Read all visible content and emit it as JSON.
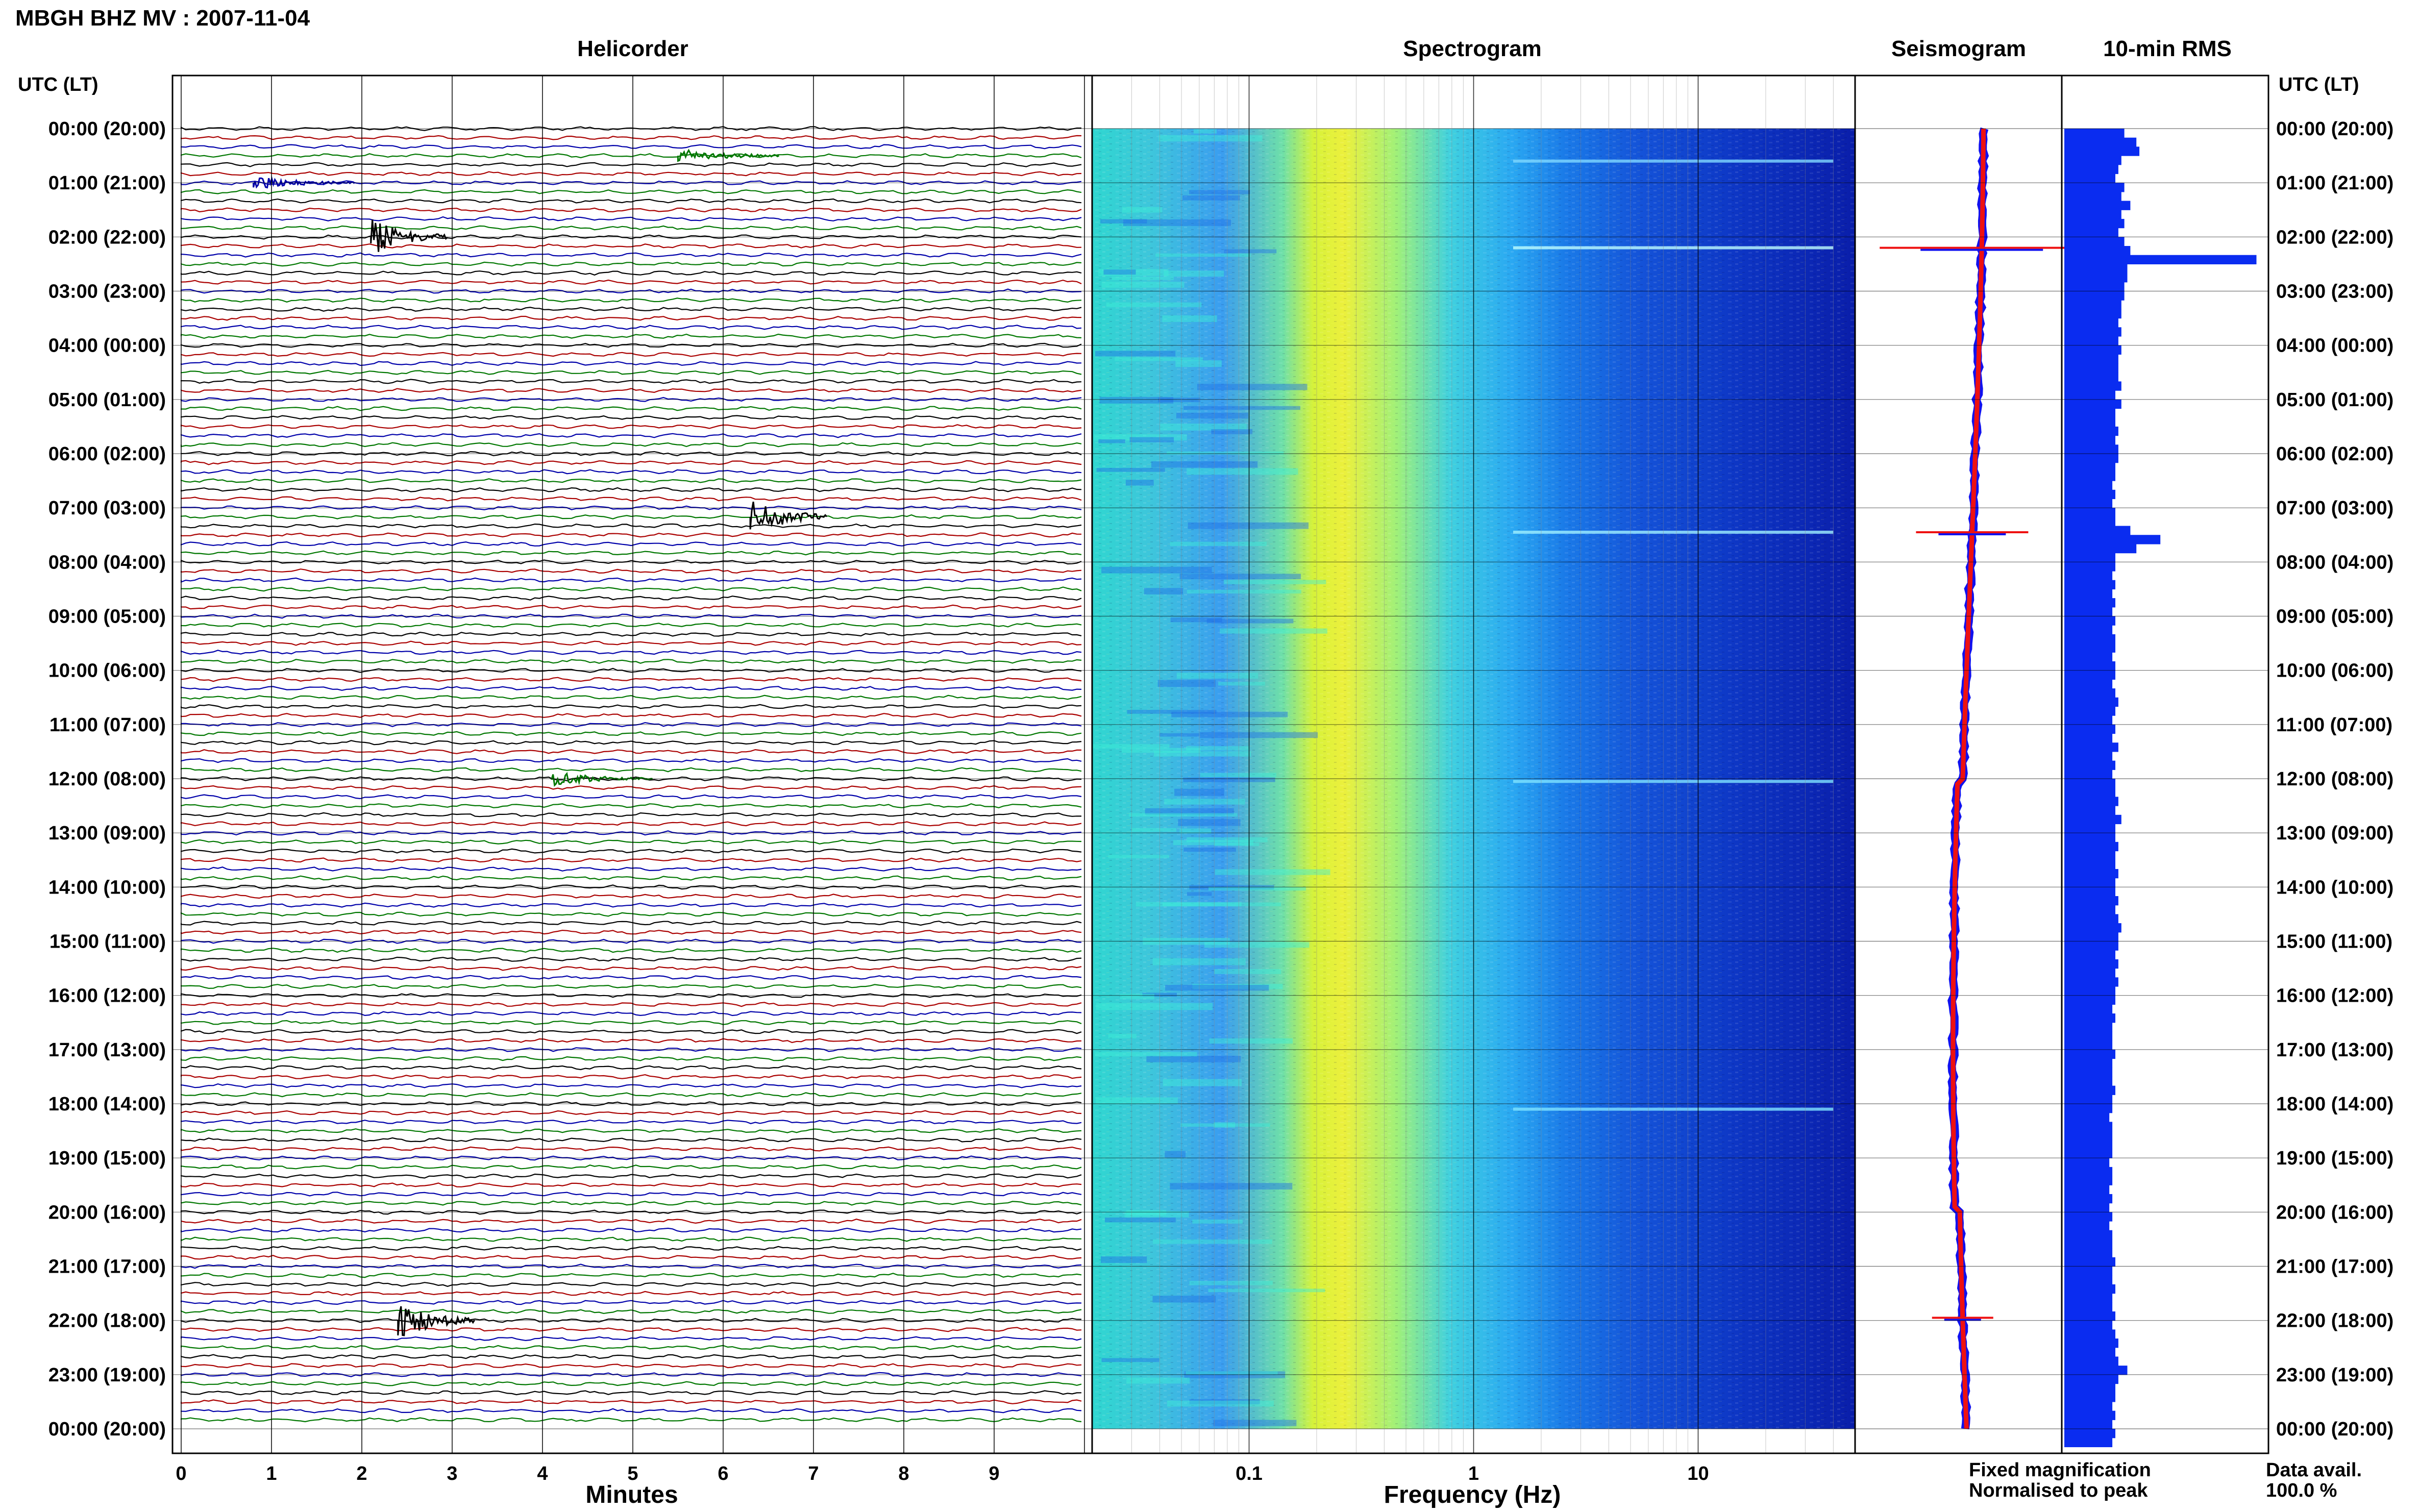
{
  "header": {
    "title": "MBGH BHZ MV : 2007-11-04",
    "axis_left_header": "UTC (LT)",
    "axis_right_header": "UTC (LT)"
  },
  "panels": {
    "helicorder": "Helicorder",
    "spectrogram": "Spectrogram",
    "seismogram": "Seismogram",
    "rms": "10-min RMS"
  },
  "time_labels": [
    "00:00 (20:00)",
    "01:00 (21:00)",
    "02:00 (22:00)",
    "03:00 (23:00)",
    "04:00 (00:00)",
    "05:00 (01:00)",
    "06:00 (02:00)",
    "07:00 (03:00)",
    "08:00 (04:00)",
    "09:00 (05:00)",
    "10:00 (06:00)",
    "11:00 (07:00)",
    "12:00 (08:00)",
    "13:00 (09:00)",
    "14:00 (10:00)",
    "15:00 (11:00)",
    "16:00 (12:00)",
    "17:00 (13:00)",
    "18:00 (14:00)",
    "19:00 (15:00)",
    "20:00 (16:00)",
    "21:00 (17:00)",
    "22:00 (18:00)",
    "23:00 (19:00)",
    "00:00 (20:00)"
  ],
  "helicorder_axis": {
    "ticks": [
      "0",
      "1",
      "2",
      "3",
      "4",
      "5",
      "6",
      "7",
      "8",
      "9"
    ],
    "label": "Minutes"
  },
  "spectrogram_axis": {
    "ticks": [
      "0.1",
      "1",
      "10"
    ],
    "label": "Frequency (Hz)"
  },
  "legend": {
    "fixed": "Fixed magnification",
    "normalised": "Normalised to peak",
    "fixed_color": "#1111ee",
    "normalised_color": "#ee1111"
  },
  "data_avail": {
    "label": "Data avail.",
    "value": "100.0 %"
  },
  "colors": {
    "trace_cycle": [
      "#000000",
      "#aa0000",
      "#0000aa",
      "#007700"
    ],
    "rms_bar": "#0a2cf0"
  },
  "chart_data": [
    {
      "type": "line",
      "title": "Helicorder",
      "xlabel": "Minutes",
      "xlim": [
        0,
        10
      ],
      "ylabel": "UTC (LT)",
      "rows": 144,
      "row_minutes": 10,
      "events": [
        {
          "time_utc": "00:30",
          "minute": 5.5,
          "amplitude": "moderate"
        },
        {
          "time_utc": "01:00",
          "minute": 0.8,
          "amplitude": "moderate"
        },
        {
          "time_utc": "02:00",
          "minute": 2.1,
          "amplitude": "large"
        },
        {
          "time_utc": "07:10",
          "minute": 6.3,
          "amplitude": "large"
        },
        {
          "time_utc": "12:00",
          "minute": 4.1,
          "amplitude": "moderate"
        },
        {
          "time_utc": "22:00",
          "minute": 2.4,
          "amplitude": "large"
        }
      ]
    },
    {
      "type": "heatmap",
      "title": "Spectrogram",
      "xlabel": "Frequency (Hz)",
      "xscale": "log",
      "xlim": [
        0.02,
        50
      ],
      "colormap": "jet",
      "peak_band_hz": [
        0.18,
        0.3
      ]
    },
    {
      "type": "line",
      "title": "Seismogram",
      "series": [
        {
          "name": "Fixed magnification",
          "color": "#1111ee"
        },
        {
          "name": "Normalised to peak",
          "color": "#ee1111"
        }
      ]
    },
    {
      "type": "bar",
      "title": "10-min RMS",
      "orientation": "horizontal",
      "bins": 144,
      "values": [
        1.0,
        1.2,
        1.25,
        0.95,
        0.9,
        0.85,
        1.0,
        0.95,
        1.1,
        0.95,
        1.0,
        0.9,
        1.0,
        1.1,
        3.2,
        1.05,
        1.05,
        1.0,
        1.0,
        0.95,
        0.95,
        0.9,
        0.95,
        0.9,
        0.95,
        0.9,
        0.9,
        0.9,
        0.95,
        0.85,
        0.95,
        0.85,
        0.85,
        0.9,
        0.85,
        0.9,
        0.9,
        0.85,
        0.85,
        0.8,
        0.85,
        0.8,
        0.85,
        0.85,
        1.1,
        1.6,
        1.2,
        0.85,
        0.85,
        0.8,
        0.85,
        0.8,
        0.85,
        0.8,
        0.85,
        0.8,
        0.85,
        0.85,
        0.8,
        0.85,
        0.85,
        0.8,
        0.85,
        0.9,
        0.85,
        0.8,
        0.85,
        0.8,
        0.9,
        0.8,
        0.85,
        0.8,
        0.85,
        0.85,
        0.9,
        0.85,
        0.95,
        0.85,
        0.85,
        0.9,
        0.85,
        0.85,
        0.9,
        0.85,
        0.85,
        0.9,
        0.85,
        0.9,
        0.95,
        0.9,
        0.9,
        0.85,
        0.9,
        0.85,
        0.9,
        0.85,
        0.85,
        0.8,
        0.85,
        0.8,
        0.8,
        0.8,
        0.85,
        0.8,
        0.8,
        0.8,
        0.85,
        0.8,
        0.8,
        0.75,
        0.8,
        0.8,
        0.8,
        0.8,
        0.75,
        0.8,
        0.8,
        0.75,
        0.8,
        0.75,
        0.8,
        0.75,
        0.8,
        0.8,
        0.8,
        0.85,
        0.8,
        0.8,
        0.85,
        0.8,
        0.8,
        0.85,
        0.8,
        0.85,
        0.9,
        0.85,
        0.9,
        1.05,
        0.9,
        0.85,
        0.85,
        0.8,
        0.85,
        0.8,
        0.85,
        0.8
      ],
      "xlim": [
        0,
        3.4
      ]
    }
  ]
}
